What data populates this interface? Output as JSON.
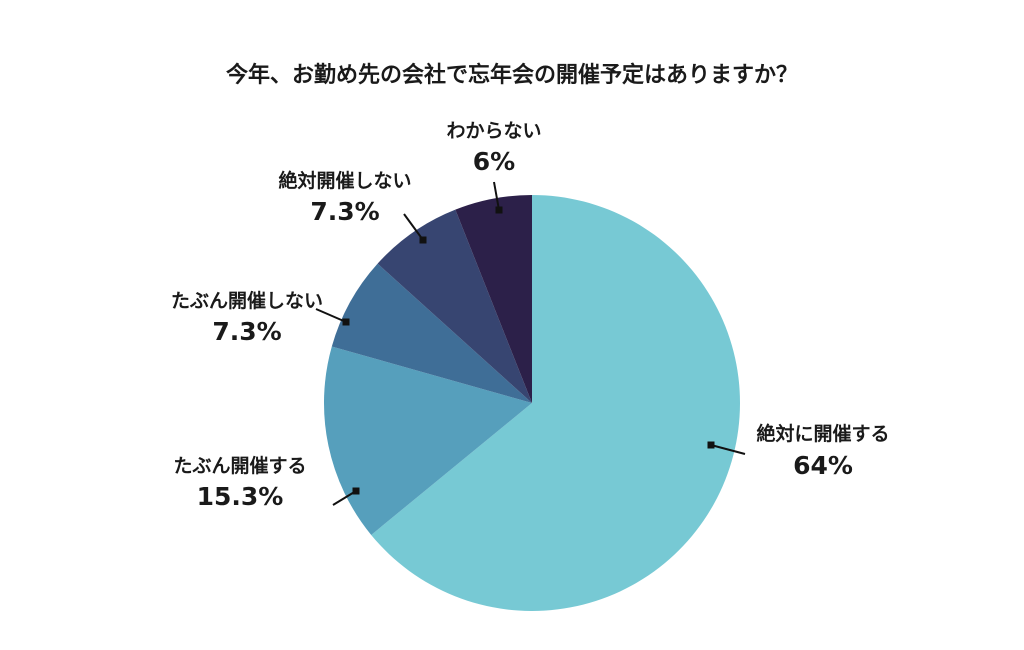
{
  "chart_data": {
    "type": "pie",
    "title": "今年、お勤め先の会社で忘年会の開催予定はありますか？",
    "slices": [
      {
        "label": "絶対に開催する",
        "value": 64,
        "value_label": "64%",
        "color": "#77c9d4"
      },
      {
        "label": "たぶん開催する",
        "value": 15.3,
        "value_label": "15.3%",
        "color": "#569fbc"
      },
      {
        "label": "たぶん開催しない",
        "value": 7.3,
        "value_label": "7.3%",
        "color": "#3f6e97"
      },
      {
        "label": "絶対開催しない",
        "value": 7.3,
        "value_label": "7.3%",
        "color": "#374571"
      },
      {
        "label": "わからない",
        "value": 6,
        "value_label": "6%",
        "color": "#2c2049"
      }
    ],
    "start": "12 o'clock",
    "direction": "clockwise",
    "legend": "none"
  }
}
